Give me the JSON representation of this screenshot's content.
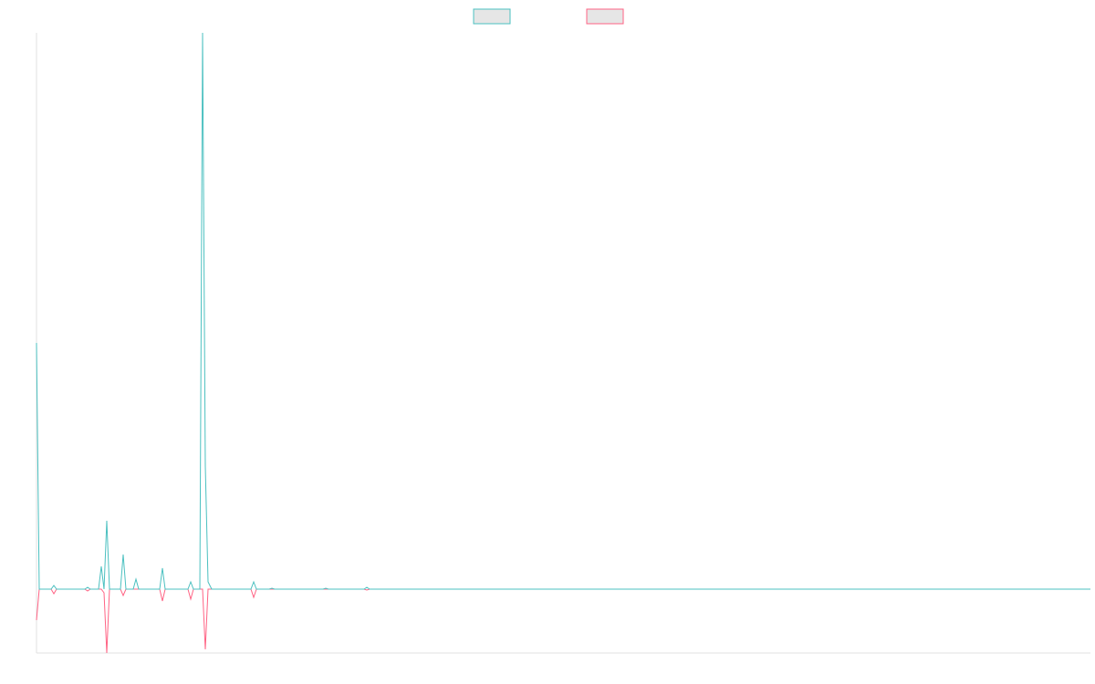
{
  "chart_data": {
    "type": "line",
    "x": [
      0,
      3,
      16,
      19,
      22,
      53,
      56,
      59,
      68,
      71,
      74,
      77,
      80,
      83,
      92,
      95,
      98,
      106,
      109,
      112,
      135,
      138,
      141,
      166,
      169,
      172,
      179,
      182,
      185,
      188,
      192,
      235,
      238,
      241,
      255,
      258,
      261,
      314,
      317,
      320,
      359,
      362,
      365,
      1155
    ],
    "series": [
      {
        "color": "#ff6384",
        "values": [
          -34,
          0,
          0,
          -5,
          0,
          0,
          -2,
          0,
          0,
          0,
          -4,
          -70,
          0,
          0,
          0,
          -7,
          0,
          0,
          0,
          0,
          0,
          -13,
          0,
          0,
          -11,
          0,
          0,
          0,
          -66,
          0,
          0,
          0,
          -9,
          0,
          0,
          0,
          0,
          0,
          0,
          0,
          0,
          -1,
          0,
          0
        ]
      },
      {
        "color": "#4bc0c0",
        "values": [
          270,
          0,
          0,
          4,
          0,
          0,
          2,
          0,
          0,
          25,
          0,
          75,
          0,
          0,
          0,
          38,
          0,
          0,
          11,
          0,
          0,
          23,
          0,
          0,
          8,
          0,
          0,
          610,
          135,
          8,
          0,
          0,
          8,
          0,
          0,
          1,
          0,
          0,
          1,
          0,
          0,
          2,
          0,
          0
        ]
      }
    ],
    "xlim": [
      0,
      1155
    ],
    "ylim": [
      -70,
      610
    ],
    "legend": "top"
  }
}
